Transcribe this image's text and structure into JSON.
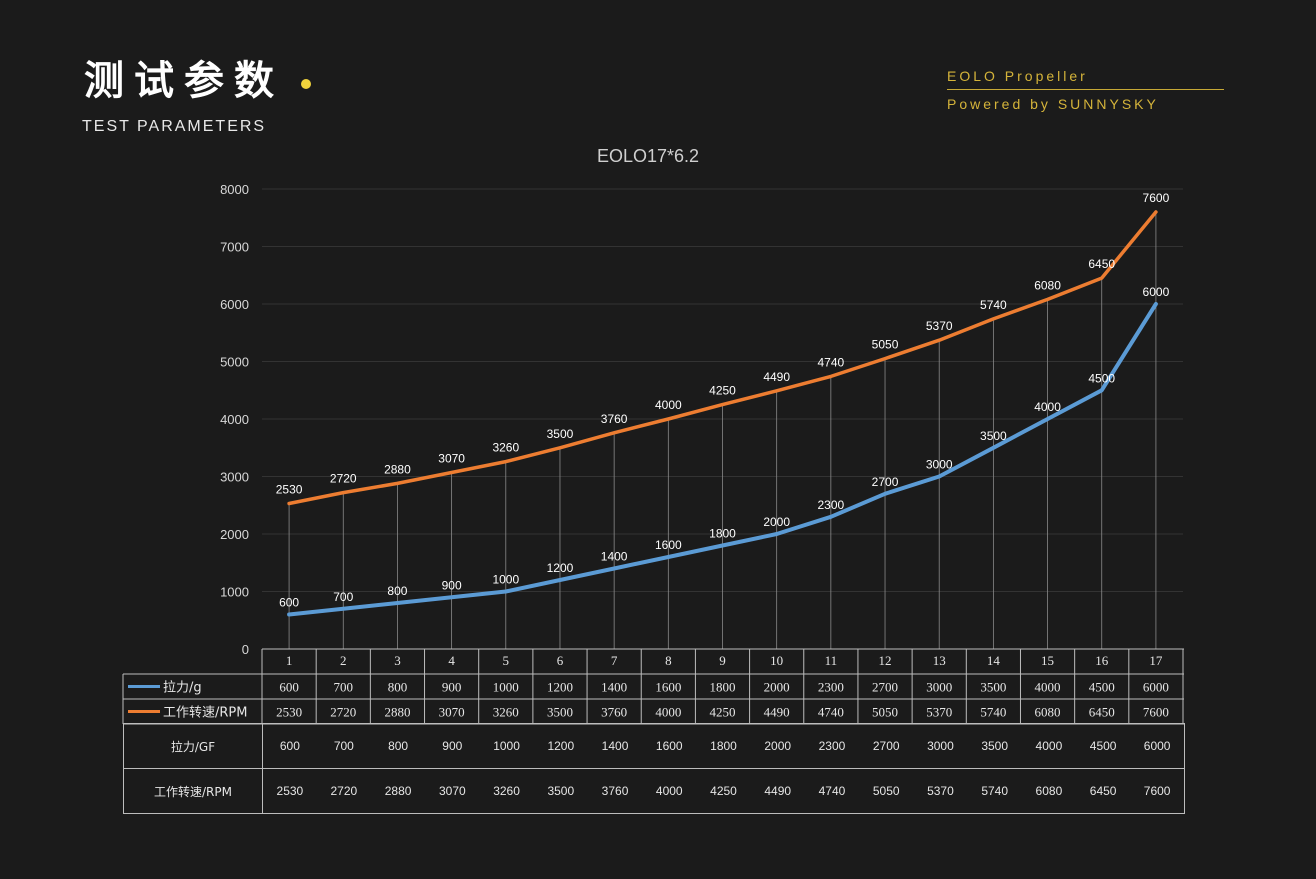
{
  "header": {
    "title_cn": "测试参数",
    "title_en": "TEST PARAMETERS",
    "brand_line1": "EOLO Propeller",
    "brand_line2": "Powered by SUNNYSKY"
  },
  "colors": {
    "background": "#1b1b1b",
    "accent_gold": "#d5b43a",
    "series_thrust": "#5b9bd5",
    "series_rpm": "#ed7d31"
  },
  "chart_data": {
    "type": "line",
    "title": "EOLO17*6.2",
    "categories": [
      "1",
      "2",
      "3",
      "4",
      "5",
      "6",
      "7",
      "8",
      "9",
      "10",
      "11",
      "12",
      "13",
      "14",
      "15",
      "16",
      "17"
    ],
    "ylim": [
      0,
      8000
    ],
    "yticks": [
      0,
      1000,
      2000,
      3000,
      4000,
      5000,
      6000,
      7000,
      8000
    ],
    "grid": true,
    "series": [
      {
        "name": "拉力/g",
        "values": [
          600,
          700,
          800,
          900,
          1000,
          1200,
          1400,
          1600,
          1800,
          2000,
          2300,
          2700,
          3000,
          3500,
          4000,
          4500,
          6000
        ]
      },
      {
        "name": "工作转速/RPM",
        "values": [
          2530,
          2720,
          2880,
          3070,
          3260,
          3500,
          3760,
          4000,
          4250,
          4490,
          4740,
          5050,
          5370,
          5740,
          6080,
          6450,
          7600
        ]
      }
    ]
  },
  "table": {
    "rows": [
      {
        "label": "拉力/GF",
        "values": [
          "600",
          "700",
          "800",
          "900",
          "1000",
          "1200",
          "1400",
          "1600",
          "1800",
          "2000",
          "2300",
          "2700",
          "3000",
          "3500",
          "4000",
          "4500",
          "6000"
        ]
      },
      {
        "label": "工作转速/RPM",
        "values": [
          "2530",
          "2720",
          "2880",
          "3070",
          "3260",
          "3500",
          "3760",
          "4000",
          "4250",
          "4490",
          "4740",
          "5050",
          "5370",
          "5740",
          "6080",
          "6450",
          "7600"
        ]
      }
    ]
  }
}
